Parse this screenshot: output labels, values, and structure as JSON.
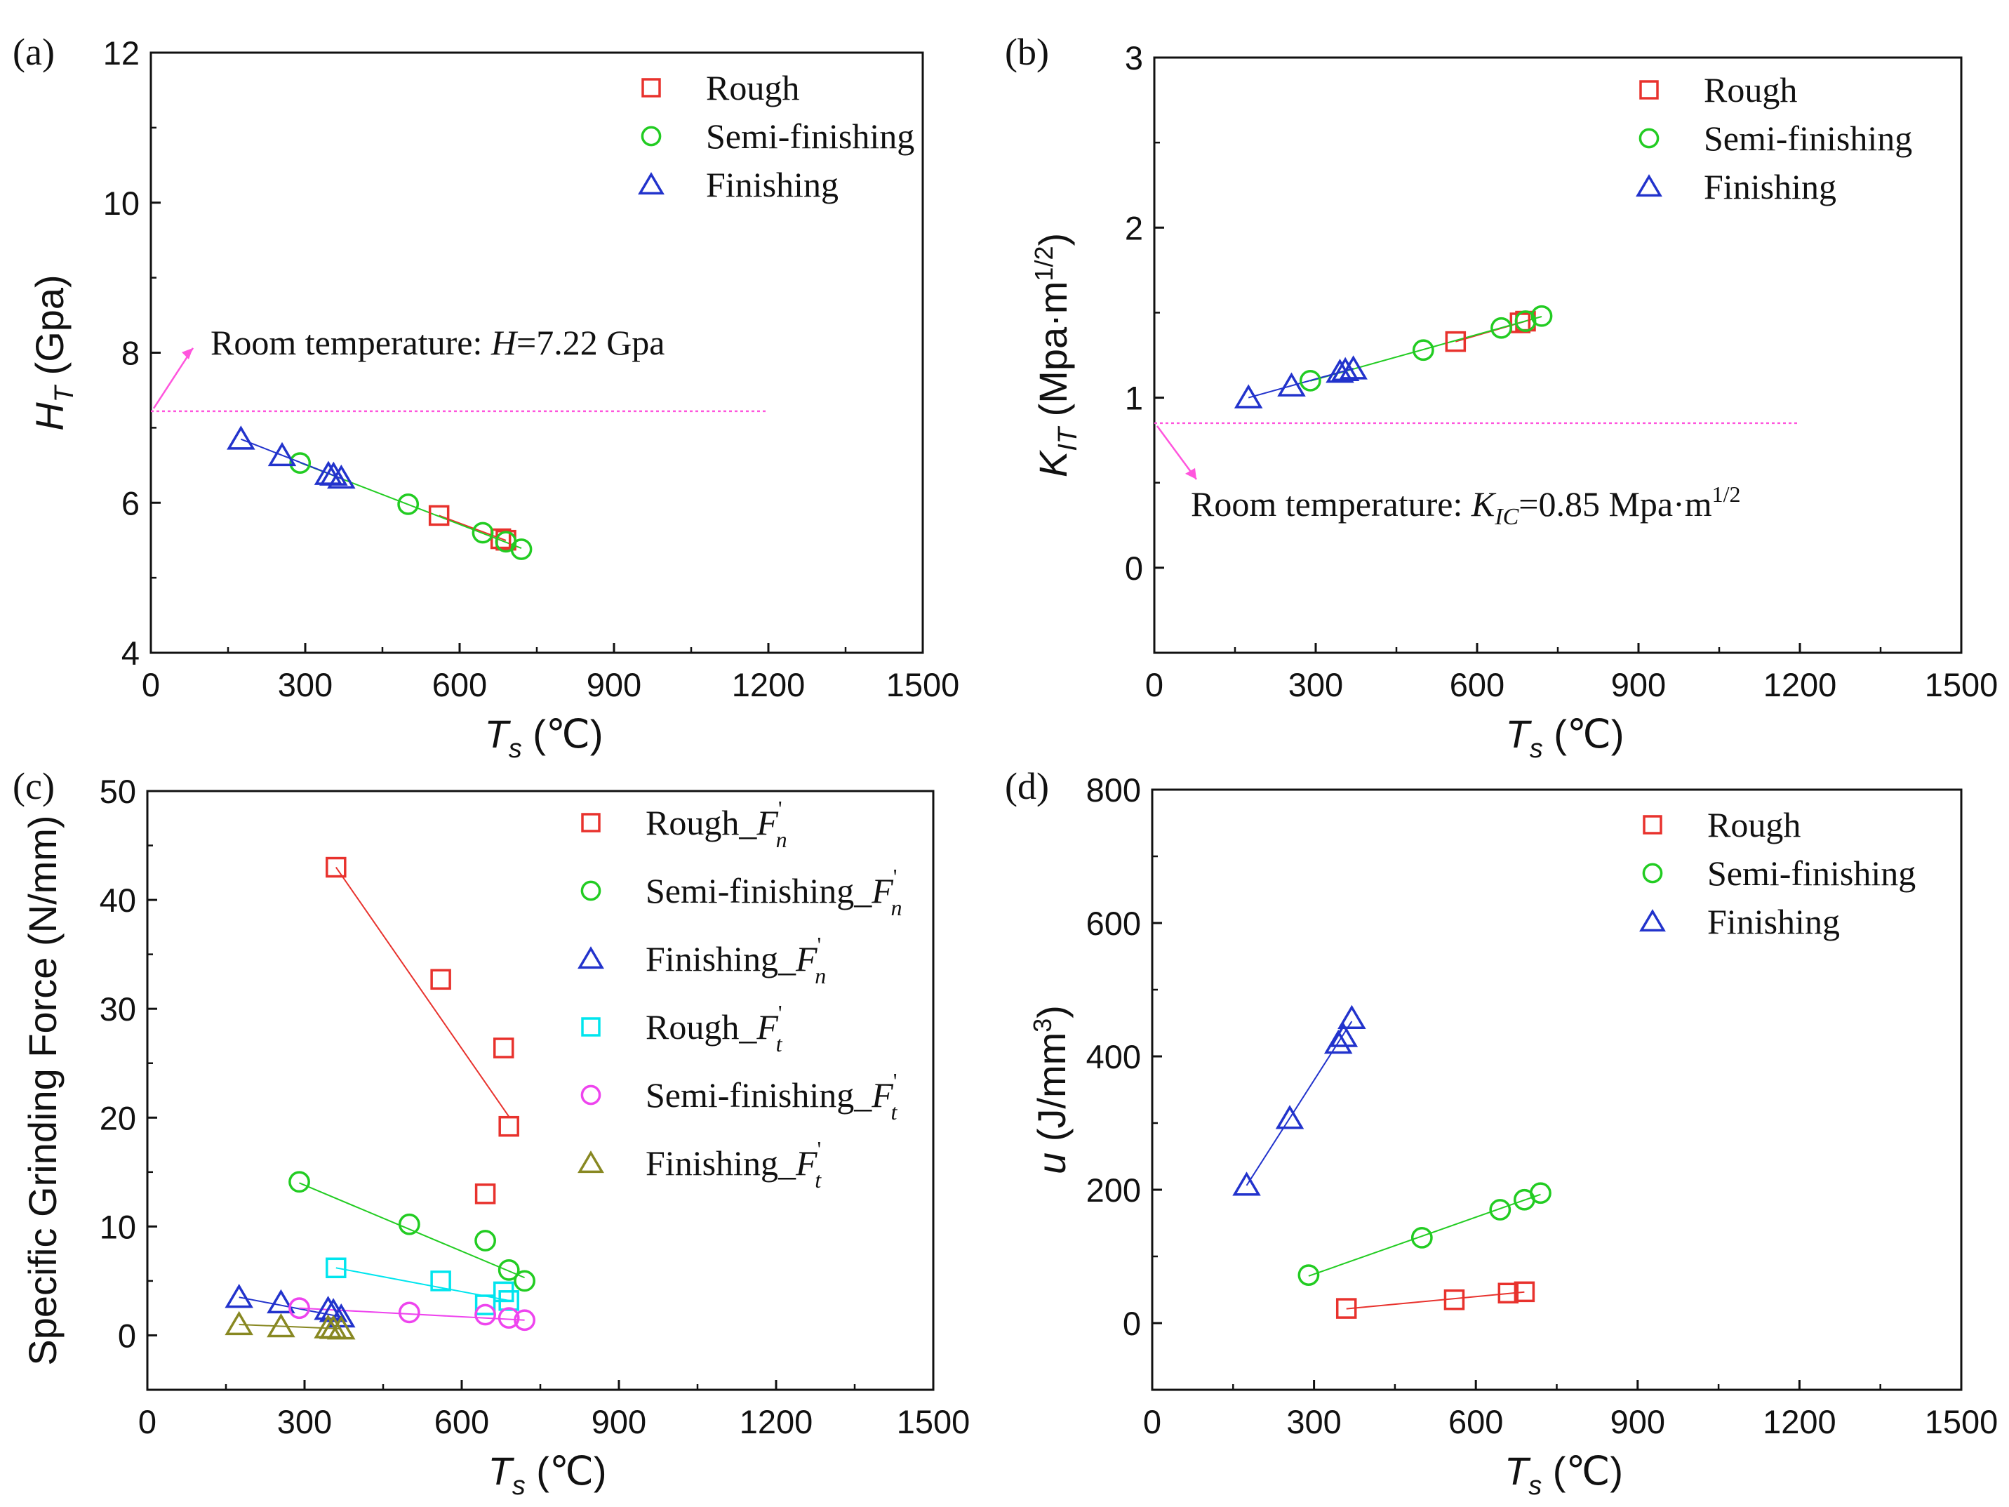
{
  "chart_data": [
    {
      "type": "scatter",
      "panel_label": "(a)",
      "xlabel": {
        "main": "T",
        "sub": "s",
        "unit": " (℃)"
      },
      "ylabel": {
        "main": "H",
        "sub": "T",
        "unit": " (Gpa)"
      },
      "xlim": [
        0,
        1500
      ],
      "ylim": [
        4,
        12
      ],
      "xticks": [
        0,
        300,
        600,
        900,
        1200,
        1500
      ],
      "yticks": [
        4,
        6,
        8,
        10,
        12
      ],
      "legend_position": "top-right",
      "reference": {
        "y": 7.22,
        "xmax": 1200,
        "color": "#ff55dd",
        "label": {
          "prefix": "Room temperature: ",
          "main": "H",
          "sub": "",
          "suffix": "=7.22 Gpa",
          "sup": ""
        }
      },
      "series": [
        {
          "name": "Rough",
          "marker": "square",
          "color": "#e8322d",
          "x": [
            560,
            680,
            690
          ],
          "y": [
            5.83,
            5.52,
            5.5
          ]
        },
        {
          "name": "Semi-finishing",
          "marker": "circle",
          "color": "#22cc22",
          "x": [
            290,
            500,
            645,
            690,
            720
          ],
          "y": [
            6.53,
            5.98,
            5.6,
            5.48,
            5.38
          ]
        },
        {
          "name": "Finishing",
          "marker": "triangle",
          "color": "#2233cc",
          "x": [
            175,
            255,
            345,
            355,
            370
          ],
          "y": [
            6.85,
            6.63,
            6.38,
            6.37,
            6.33
          ]
        }
      ]
    },
    {
      "type": "scatter",
      "panel_label": "(b)",
      "xlabel": {
        "main": "T",
        "sub": "s",
        "unit": " (℃)"
      },
      "ylabel": {
        "main": "K",
        "sub": "IT",
        "unit": " (Mpa·m",
        "sup": "1/2",
        "unit_end": ")"
      },
      "xlim": [
        0,
        1500
      ],
      "ylim": [
        -0.5,
        3
      ],
      "xticks": [
        0,
        300,
        600,
        900,
        1200,
        1500
      ],
      "yticks": [
        0,
        1,
        2,
        3
      ],
      "legend_position": "top-right",
      "reference": {
        "y": 0.85,
        "xmax": 1200,
        "color": "#ff55dd",
        "label": {
          "prefix": "Room temperature: ",
          "main": "K",
          "sub": "IC",
          "suffix": "=0.85 Mpa·m",
          "sup": "1/2"
        }
      },
      "series": [
        {
          "name": "Rough",
          "marker": "square",
          "color": "#e8322d",
          "x": [
            560,
            680,
            690
          ],
          "y": [
            1.33,
            1.44,
            1.45
          ]
        },
        {
          "name": "Semi-finishing",
          "marker": "circle",
          "color": "#22cc22",
          "x": [
            290,
            500,
            645,
            690,
            720
          ],
          "y": [
            1.1,
            1.28,
            1.41,
            1.45,
            1.48
          ]
        },
        {
          "name": "Finishing",
          "marker": "triangle",
          "color": "#2233cc",
          "x": [
            175,
            255,
            345,
            355,
            370
          ],
          "y": [
            1.0,
            1.07,
            1.15,
            1.16,
            1.17
          ]
        }
      ]
    },
    {
      "type": "scatter",
      "panel_label": "(c)",
      "xlabel": {
        "main": "T",
        "sub": "s",
        "unit": " (℃)"
      },
      "ylabel_plain": "Specific Grinding Force (N/mm)",
      "xlim": [
        0,
        1500
      ],
      "ylim": [
        -5,
        50
      ],
      "xticks": [
        0,
        300,
        600,
        900,
        1200,
        1500
      ],
      "yticks": [
        0,
        10,
        20,
        30,
        40,
        50
      ],
      "legend_position": "top-right",
      "series": [
        {
          "name": "Rough_",
          "var": "F",
          "sub": "n",
          "sup": "'",
          "marker": "square",
          "color": "#e8322d",
          "x": [
            360,
            560,
            680,
            690,
            645
          ],
          "y": [
            43,
            32.7,
            26.4,
            19.2,
            13.0
          ],
          "fit": {
            "x": [
              360,
              690
            ],
            "y": [
              43,
              20.1
            ]
          }
        },
        {
          "name": "Semi-finishing_",
          "var": "F",
          "sub": "n",
          "sup": "'",
          "marker": "circle",
          "color": "#22cc22",
          "x": [
            290,
            500,
            645,
            690,
            720
          ],
          "y": [
            14.1,
            10.2,
            8.7,
            6.0,
            5.0
          ],
          "fit": {
            "x": [
              290,
              720
            ],
            "y": [
              14.0,
              5.3
            ]
          }
        },
        {
          "name": "Finishing_",
          "var": "F",
          "sub": "n",
          "sup": "'",
          "marker": "triangle",
          "color": "#2233cc",
          "x": [
            175,
            255,
            345,
            355,
            370
          ],
          "y": [
            3.5,
            3.0,
            2.4,
            2.2,
            1.7
          ],
          "fit": {
            "x": [
              175,
              370
            ],
            "y": [
              3.5,
              1.7
            ]
          }
        },
        {
          "name": "Rough_",
          "var": "F",
          "sub": "t",
          "sup": "'",
          "marker": "square",
          "color": "#00e5ee",
          "x": [
            360,
            560,
            645,
            680,
            690
          ],
          "y": [
            6.2,
            5.0,
            2.8,
            4.0,
            3.2
          ],
          "fit": {
            "x": [
              360,
              690
            ],
            "y": [
              6.2,
              3.2
            ]
          }
        },
        {
          "name": "Semi-finishing_",
          "var": "F",
          "sub": "t",
          "sup": "'",
          "marker": "circle",
          "color": "#ee44ee",
          "x": [
            290,
            500,
            645,
            690,
            720
          ],
          "y": [
            2.5,
            2.1,
            1.9,
            1.6,
            1.4
          ],
          "fit": {
            "x": [
              290,
              720
            ],
            "y": [
              2.5,
              1.4
            ]
          }
        },
        {
          "name": "Finishing_",
          "var": "F",
          "sub": "t",
          "sup": "'",
          "marker": "triangle",
          "color": "#888822",
          "x": [
            175,
            255,
            345,
            355,
            370
          ],
          "y": [
            1.0,
            0.8,
            0.7,
            0.65,
            0.6
          ],
          "fit": {
            "x": [
              175,
              370
            ],
            "y": [
              1.0,
              0.6
            ]
          }
        }
      ]
    },
    {
      "type": "scatter",
      "panel_label": "(d)",
      "xlabel": {
        "main": "T",
        "sub": "s",
        "unit": " (℃)"
      },
      "ylabel": {
        "main": "u",
        "sub": "",
        "unit": " (J/mm",
        "sup": "3",
        "unit_end": ")"
      },
      "xlim": [
        0,
        1500
      ],
      "ylim": [
        -100,
        800
      ],
      "xticks": [
        0,
        300,
        600,
        900,
        1200,
        1500
      ],
      "yticks": [
        0,
        200,
        400,
        600,
        800
      ],
      "legend_position": "top-right",
      "series": [
        {
          "name": "Rough",
          "marker": "square",
          "color": "#e8322d",
          "x": [
            360,
            560,
            660,
            690
          ],
          "y": [
            22,
            35,
            45,
            47
          ]
        },
        {
          "name": "Semi-finishing",
          "marker": "circle",
          "color": "#22cc22",
          "x": [
            290,
            500,
            645,
            690,
            720
          ],
          "y": [
            72,
            128,
            170,
            185,
            195
          ]
        },
        {
          "name": "Finishing",
          "marker": "triangle",
          "color": "#2233cc",
          "x": [
            175,
            255,
            345,
            355,
            370
          ],
          "y": [
            207,
            307,
            420,
            430,
            457
          ]
        }
      ]
    }
  ]
}
